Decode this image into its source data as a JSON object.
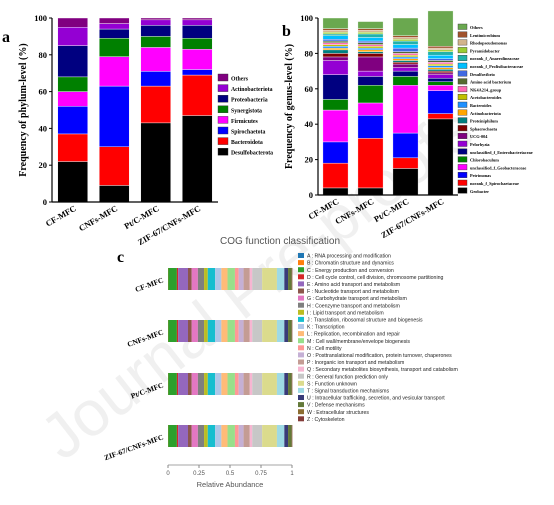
{
  "panels": {
    "a": "a",
    "b": "b",
    "c": "c"
  },
  "watermark": "Journal Pre-proofs",
  "chart_data": [
    {
      "panel": "a",
      "type": "bar",
      "stacked": true,
      "ylabel": "Frequency of phylum-level (%)",
      "ylim": [
        0,
        100
      ],
      "yticks": [
        "0",
        "20",
        "40",
        "60",
        "80",
        "100"
      ],
      "categories": [
        "CF-MFC",
        "CNFs-MFC",
        "Pt/C-MFC",
        "ZIF-67/CNFs-MFC"
      ],
      "legend_position": "right",
      "series": [
        {
          "name": "Desulfobacterota",
          "color": "#000000",
          "values": [
            22,
            9,
            43,
            47
          ]
        },
        {
          "name": "Bacteroidota",
          "color": "#ff0000",
          "values": [
            15,
            21,
            20,
            22
          ]
        },
        {
          "name": "Spirochaetota",
          "color": "#0000ff",
          "values": [
            15,
            33,
            8,
            3
          ]
        },
        {
          "name": "Firmicutes",
          "color": "#ff00ff",
          "values": [
            8,
            16,
            13,
            11
          ]
        },
        {
          "name": "Synergistota",
          "color": "#008000",
          "values": [
            8,
            10,
            6,
            6
          ]
        },
        {
          "name": "Proteobacteria",
          "color": "#000080",
          "values": [
            17,
            5,
            6,
            7
          ]
        },
        {
          "name": "Actinobacteriota",
          "color": "#9400d3",
          "values": [
            10,
            3,
            3,
            3
          ]
        },
        {
          "name": "Others",
          "color": "#800080",
          "values": [
            5,
            3,
            1,
            1
          ]
        }
      ]
    },
    {
      "panel": "b",
      "type": "bar",
      "stacked": true,
      "ylabel": "Frequency of genus-level (%)",
      "ylim": [
        0,
        100
      ],
      "yticks": [
        "0",
        "20",
        "40",
        "60",
        "80",
        "100"
      ],
      "categories": [
        "CF-MFC",
        "CNFs-MFC",
        "Pt/C-MFC",
        "ZIF-67/CNFs-MFC"
      ],
      "legend_position": "right",
      "series": [
        {
          "name": "Geobacter",
          "color": "#000000",
          "values": [
            4,
            4,
            15,
            43
          ]
        },
        {
          "name": "norank_f_Spirochaetaceae",
          "color": "#ff0000",
          "values": [
            14,
            28,
            6,
            3
          ]
        },
        {
          "name": "Petrimonas",
          "color": "#0000ff",
          "values": [
            12,
            13,
            14,
            13
          ]
        },
        {
          "name": "unclassified_f_Geobacteraceae",
          "color": "#ff00ff",
          "values": [
            18,
            7,
            27,
            3
          ]
        },
        {
          "name": "Chlorobaculum",
          "color": "#008000",
          "values": [
            6,
            10,
            5,
            2
          ]
        },
        {
          "name": "unclassified_f_Enterobacteriaceae",
          "color": "#000080",
          "values": [
            14,
            5,
            3,
            2
          ]
        },
        {
          "name": "Pelorhyzia",
          "color": "#9400d3",
          "values": [
            8,
            3,
            2,
            2
          ]
        },
        {
          "name": "UCG-004",
          "color": "#800080",
          "values": [
            2,
            8,
            2,
            1
          ]
        },
        {
          "name": "Sphaerochaeta",
          "color": "#800000",
          "values": [
            2,
            2,
            1,
            1
          ]
        },
        {
          "name": "Proteiniphilum",
          "color": "#008080",
          "values": [
            2,
            1,
            1,
            1
          ]
        },
        {
          "name": "Actinobacteriota",
          "color": "#ffa500",
          "values": [
            1,
            1,
            1,
            1
          ]
        },
        {
          "name": "Bacteroides",
          "color": "#1e90ff",
          "values": [
            1,
            1,
            1,
            1
          ]
        },
        {
          "name": "Acetobacteroides",
          "color": "#c0c000",
          "values": [
            1,
            1,
            1,
            1
          ]
        },
        {
          "name": "NK4A214_group",
          "color": "#ff69b4",
          "values": [
            1,
            1,
            1,
            1
          ]
        },
        {
          "name": "Amino acid bacterium",
          "color": "#556b2f",
          "values": [
            1,
            1,
            1,
            1
          ]
        },
        {
          "name": "Desulfovibrio",
          "color": "#4169e1",
          "values": [
            1,
            1,
            2,
            1
          ]
        },
        {
          "name": "norank_f_Prolixibacteraceae",
          "color": "#00bfff",
          "values": [
            2,
            2,
            2,
            2
          ]
        },
        {
          "name": "norank_f_Anaerolineaceae",
          "color": "#20b2aa",
          "values": [
            1,
            2,
            2,
            2
          ]
        },
        {
          "name": "Pyramidobacter",
          "color": "#9acd32",
          "values": [
            1,
            1,
            1,
            1
          ]
        },
        {
          "name": "Rhodopseudomonas",
          "color": "#d2b48c",
          "values": [
            1,
            1,
            1,
            1
          ]
        },
        {
          "name": "Lentimicrobium",
          "color": "#a0522d",
          "values": [
            1,
            1,
            1,
            1
          ]
        },
        {
          "name": "Others",
          "color": "#6aa84f",
          "values": [
            6,
            4,
            10,
            20
          ]
        }
      ]
    },
    {
      "panel": "c",
      "type": "bar",
      "orientation": "horizontal",
      "stacked": true,
      "title": "COG function classification",
      "xlabel": "Relative Abundance",
      "xlim": [
        0,
        1
      ],
      "xticks": [
        "0",
        "0.25",
        "0.5",
        "0.75",
        "1"
      ],
      "categories": [
        "CF-MFC",
        "CNFs-MFC",
        "Pt/C-MFC",
        "ZIF-67/CNFs-MFC"
      ],
      "legend_position": "right",
      "series": [
        {
          "name": "A : RNA processing and modification",
          "color": "#1f77b4",
          "values": [
            0.001,
            0.001,
            0.001,
            0.001
          ]
        },
        {
          "name": "B : Chromatin structure and dynamics",
          "color": "#ff7f0e",
          "values": [
            0.001,
            0.001,
            0.001,
            0.001
          ]
        },
        {
          "name": "C : Energy production and conversion",
          "color": "#2ca02c",
          "values": [
            0.07,
            0.07,
            0.07,
            0.07
          ]
        },
        {
          "name": "D : Cell cycle control, cell division, chromosome partitioning",
          "color": "#d62728",
          "values": [
            0.01,
            0.01,
            0.01,
            0.01
          ]
        },
        {
          "name": "E : Amino acid transport and metabolism",
          "color": "#9467bd",
          "values": [
            0.08,
            0.08,
            0.08,
            0.08
          ]
        },
        {
          "name": "F : Nucleotide transport and metabolism",
          "color": "#8c564b",
          "values": [
            0.03,
            0.03,
            0.03,
            0.03
          ]
        },
        {
          "name": "G : Carbohydrate transport and metabolism",
          "color": "#e377c2",
          "values": [
            0.05,
            0.05,
            0.05,
            0.05
          ]
        },
        {
          "name": "H : Coenzyme transport and metabolism",
          "color": "#7f7f7f",
          "values": [
            0.05,
            0.05,
            0.05,
            0.05
          ]
        },
        {
          "name": "I : Lipid transport and metabolism",
          "color": "#bcbd22",
          "values": [
            0.03,
            0.03,
            0.03,
            0.03
          ]
        },
        {
          "name": "J : Translation, ribosomal structure and biogenesis",
          "color": "#17becf",
          "values": [
            0.06,
            0.06,
            0.06,
            0.06
          ]
        },
        {
          "name": "K : Transcription",
          "color": "#aec7e8",
          "values": [
            0.05,
            0.05,
            0.05,
            0.05
          ]
        },
        {
          "name": "L : Replication, recombination and repair",
          "color": "#ffbb78",
          "values": [
            0.05,
            0.05,
            0.05,
            0.05
          ]
        },
        {
          "name": "M : Cell wall/membrane/envelope biogenesis",
          "color": "#98df8a",
          "values": [
            0.06,
            0.06,
            0.06,
            0.06
          ]
        },
        {
          "name": "N : Cell motility",
          "color": "#ff9896",
          "values": [
            0.03,
            0.03,
            0.03,
            0.03
          ]
        },
        {
          "name": "O : Posttranslational modification, protein turnover, chaperones",
          "color": "#c5b0d5",
          "values": [
            0.04,
            0.04,
            0.04,
            0.04
          ]
        },
        {
          "name": "P : Inorganic ion transport and metabolism",
          "color": "#c49c94",
          "values": [
            0.05,
            0.05,
            0.05,
            0.05
          ]
        },
        {
          "name": "Q : Secondary metabolites biosynthesis, transport and catabolism",
          "color": "#f7b6d2",
          "values": [
            0.02,
            0.02,
            0.02,
            0.02
          ]
        },
        {
          "name": "R : General function prediction only",
          "color": "#c7c7c7",
          "values": [
            0.08,
            0.08,
            0.08,
            0.08
          ]
        },
        {
          "name": "S : Function unknown",
          "color": "#dbdb8d",
          "values": [
            0.12,
            0.12,
            0.12,
            0.12
          ]
        },
        {
          "name": "T : Signal transduction mechanisms",
          "color": "#9edae5",
          "values": [
            0.06,
            0.06,
            0.06,
            0.06
          ]
        },
        {
          "name": "U : Intracellular trafficking, secretion, and vesicular transport",
          "color": "#393b79",
          "values": [
            0.03,
            0.03,
            0.03,
            0.03
          ]
        },
        {
          "name": "V : Defense mechanisms",
          "color": "#637939",
          "values": [
            0.03,
            0.03,
            0.03,
            0.03
          ]
        },
        {
          "name": "W : Extracellular structures",
          "color": "#8c6d31",
          "values": [
            0.001,
            0.001,
            0.001,
            0.001
          ]
        },
        {
          "name": "Z : Cytoskeleton",
          "color": "#843c39",
          "values": [
            0.001,
            0.001,
            0.001,
            0.001
          ]
        }
      ]
    }
  ]
}
